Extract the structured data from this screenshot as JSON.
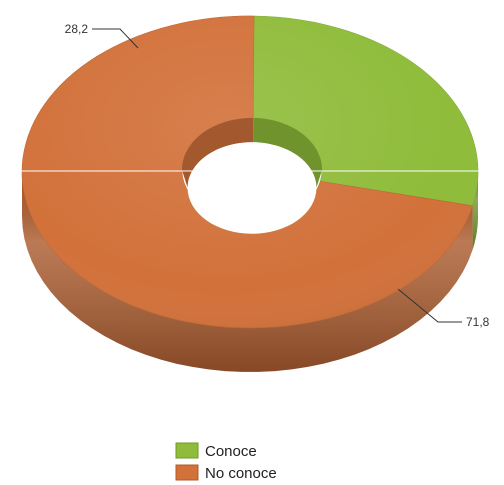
{
  "chart_data": {
    "type": "pie",
    "style": "3d-donut",
    "categories": [
      "Conoce",
      "No conoce"
    ],
    "values": [
      28.2,
      71.8
    ],
    "data_labels": [
      "28,2",
      "71,8"
    ],
    "colors": [
      "#8fbc3a",
      "#d2713a"
    ],
    "legend": {
      "position": "bottom",
      "entries": [
        "Conoce",
        "No conoce"
      ]
    }
  }
}
